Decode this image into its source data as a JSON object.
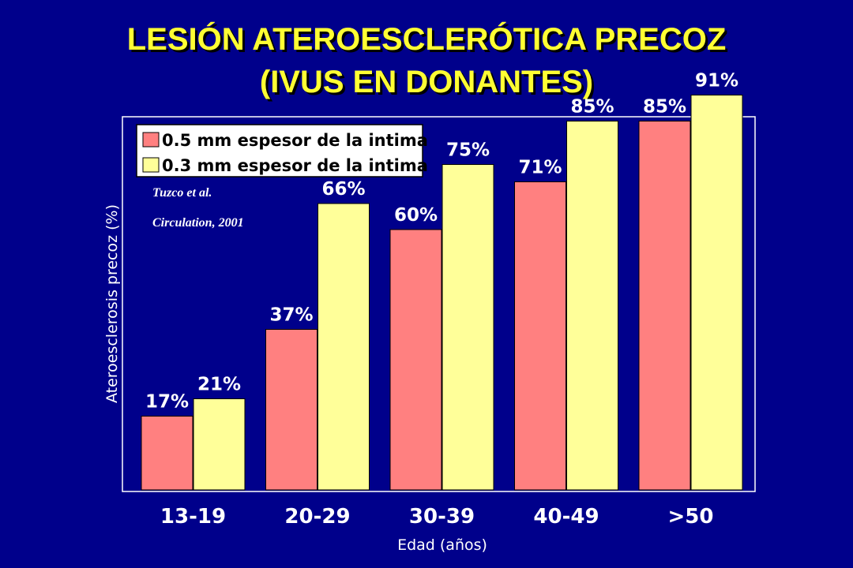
{
  "slide": {
    "title_line1": "LESIÓN ATEROESCLERÓTICA PRECOZ",
    "title_line2": "(IVUS EN DONANTES)"
  },
  "citation": {
    "line1": "Tuzco et al.",
    "line2": "Circulation, 2001"
  },
  "chart_data": {
    "type": "bar",
    "xlabel": "Edad (años)",
    "ylabel": "Ateroesclerosis precoz (%)",
    "categories": [
      "13-19",
      "20-29",
      "30-39",
      "40-49",
      ">50"
    ],
    "ylim": [
      0,
      100
    ],
    "grid": false,
    "legend_position": "top-left",
    "series": [
      {
        "name": "0.5 mm espesor de la intima",
        "values": [
          17,
          37,
          60,
          71,
          85
        ],
        "labels": [
          "17%",
          "37%",
          "60%",
          "71%",
          "85%"
        ],
        "color": "#ff8080"
      },
      {
        "name": "0.3 mm espesor de la intima",
        "values": [
          21,
          66,
          75,
          85,
          91
        ],
        "labels": [
          "21%",
          "66%",
          "75%",
          "85%",
          "91%"
        ],
        "color": "#ffff99"
      }
    ]
  },
  "colors": {
    "background": "#00008b",
    "title": "#ffff33",
    "text": "#ffffff"
  }
}
